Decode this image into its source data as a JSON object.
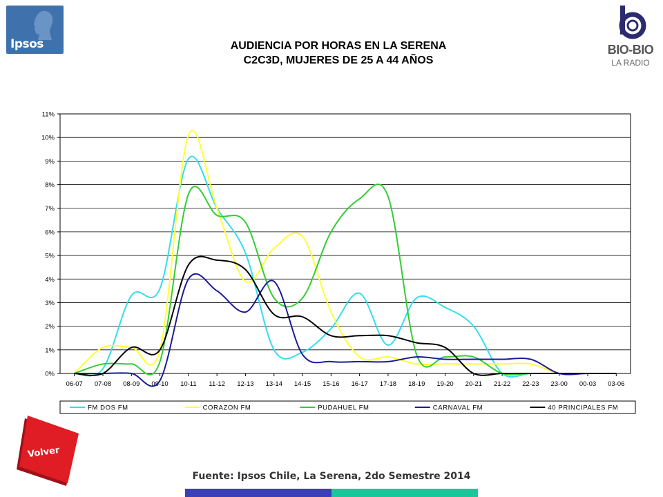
{
  "header": {
    "ipsos_logo_text": "Ipsos",
    "biobio_logo_text": "BIO-BIO",
    "biobio_logo_sub": "LA RADIO",
    "title_line1": "AUDIENCIA POR HORAS EN LA SERENA",
    "title_line2": "C2C3D, MUJERES DE 25 A 44 AÑOS"
  },
  "footer": {
    "volver_label": "Volver",
    "source": "Fuente: Ipsos Chile, La Serena, 2do Semestre 2014"
  },
  "colors": {
    "ipsos_blue": "#3f72ad",
    "volver_red": "#e01c24",
    "footer_bar_blue": "#3a3fb5",
    "footer_bar_teal": "#1fc59a"
  },
  "chart_data": {
    "type": "line",
    "title": "",
    "xlabel": "",
    "ylabel": "",
    "ylim": [
      0,
      11
    ],
    "y_ticks": [
      0,
      1,
      2,
      3,
      4,
      5,
      6,
      7,
      8,
      9,
      10,
      11
    ],
    "y_tick_labels": [
      "0%",
      "1%",
      "2%",
      "3%",
      "4%",
      "5%",
      "6%",
      "7%",
      "8%",
      "9%",
      "10%",
      "11%"
    ],
    "grid": true,
    "legend_position": "bottom",
    "categories": [
      "06-07",
      "07-08",
      "08-09",
      "09-10",
      "10-11",
      "11-12",
      "12-13",
      "13-14",
      "14-15",
      "15-16",
      "16-17",
      "17-18",
      "18-19",
      "19-20",
      "20-21",
      "21-22",
      "22-23",
      "23-00",
      "00-03",
      "03-06"
    ],
    "series": [
      {
        "name": "FM DOS FM",
        "color": "#33ddee",
        "values": [
          0,
          0.2,
          3.3,
          3.6,
          9.1,
          7.0,
          5.1,
          1.0,
          0.9,
          1.9,
          3.4,
          1.2,
          3.2,
          2.8,
          2.0,
          0,
          0,
          0,
          0,
          0
        ]
      },
      {
        "name": "CORAZON FM",
        "color": "#ffff33",
        "values": [
          0,
          1.1,
          1.1,
          1.0,
          10.1,
          7.0,
          3.9,
          5.3,
          5.8,
          2.6,
          0.7,
          0.7,
          0.4,
          0.4,
          0.4,
          0.4,
          0.4,
          0,
          0,
          0
        ]
      },
      {
        "name": "PUDAHUEL FM",
        "color": "#33cc33",
        "values": [
          0,
          0.4,
          0.4,
          0.5,
          7.6,
          6.7,
          6.4,
          3.2,
          3.2,
          6.0,
          7.4,
          7.5,
          0.8,
          0.7,
          0.7,
          0,
          0,
          0,
          0,
          0
        ]
      },
      {
        "name": "CARNAVAL FM",
        "color": "#1a1a99",
        "values": [
          0,
          0,
          0,
          -0.3,
          4.0,
          3.5,
          2.6,
          3.9,
          0.8,
          0.5,
          0.5,
          0.5,
          0.7,
          0.6,
          0.6,
          0.6,
          0.6,
          0,
          0,
          0
        ]
      },
      {
        "name": "40 PRINCIPALES FM",
        "color": "#000000",
        "values": [
          0,
          0,
          1.1,
          1.0,
          4.6,
          4.8,
          4.4,
          2.5,
          2.4,
          1.6,
          1.6,
          1.6,
          1.3,
          1.1,
          0,
          0,
          0,
          0,
          0,
          0
        ]
      }
    ]
  }
}
